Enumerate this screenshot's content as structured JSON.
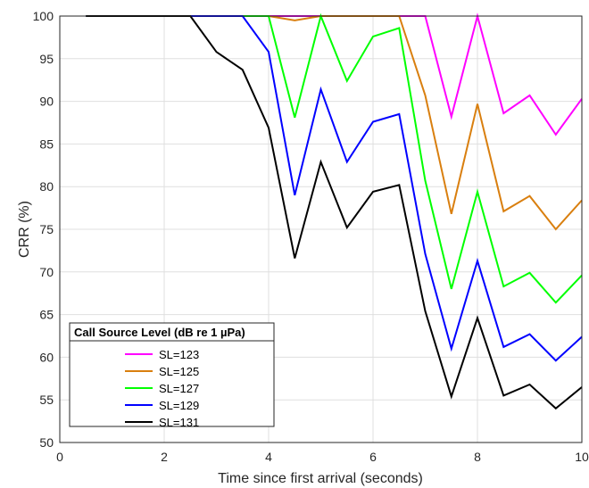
{
  "chart_data": {
    "type": "line",
    "xlabel": "Time since first arrival (seconds)",
    "ylabel": "CRR (%)",
    "xlim": [
      0,
      10
    ],
    "ylim": [
      50,
      100
    ],
    "xticks": [
      0,
      2,
      4,
      6,
      8,
      10
    ],
    "yticks": [
      50,
      55,
      60,
      65,
      70,
      75,
      80,
      85,
      90,
      95,
      100
    ],
    "grid": true,
    "legend": {
      "title": "Call Source Level (dB re 1 µPa)",
      "placement": "bottom-left"
    },
    "x": [
      0.5,
      1,
      1.5,
      2,
      2.5,
      3,
      3.5,
      4,
      4.5,
      5,
      5.5,
      6,
      6.5,
      7,
      7.5,
      8,
      8.5,
      9,
      9.5,
      10
    ],
    "series": [
      {
        "name": "SL=123",
        "color": "#ff00ff",
        "values": [
          100,
          100,
          100,
          100,
          100,
          100,
          100,
          100,
          100,
          100,
          100,
          100,
          100,
          100,
          88.2,
          100,
          88.6,
          90.7,
          86.1,
          90.3
        ]
      },
      {
        "name": "SL=125",
        "color": "#d97f0f",
        "values": [
          100,
          100,
          100,
          100,
          100,
          100,
          100,
          100,
          99.5,
          100,
          100,
          100,
          100,
          90.7,
          76.8,
          89.7,
          77.1,
          78.9,
          75.0,
          78.4
        ]
      },
      {
        "name": "SL=127",
        "color": "#00ff00",
        "values": [
          100,
          100,
          100,
          100,
          100,
          100,
          100,
          100,
          88.1,
          100,
          92.4,
          97.6,
          98.6,
          80.7,
          68.0,
          79.4,
          68.3,
          69.9,
          66.4,
          69.6
        ]
      },
      {
        "name": "SL=129",
        "color": "#0000ff",
        "values": [
          100,
          100,
          100,
          100,
          100,
          100,
          100,
          95.8,
          79.0,
          91.4,
          82.9,
          87.6,
          88.5,
          72.1,
          61.0,
          71.3,
          61.2,
          62.7,
          59.6,
          62.4
        ]
      },
      {
        "name": "SL=131",
        "color": "#000000",
        "values": [
          100,
          100,
          100,
          100,
          100,
          95.8,
          93.7,
          86.9,
          71.6,
          82.9,
          75.2,
          79.4,
          80.2,
          65.4,
          55.4,
          64.6,
          55.5,
          56.8,
          54.0,
          56.5
        ]
      }
    ]
  }
}
